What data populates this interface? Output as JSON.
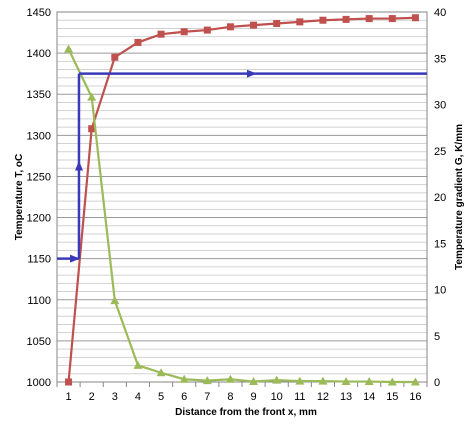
{
  "chart_data": {
    "type": "line",
    "title": "",
    "xlabel": "Distance  from the front x, mm",
    "ylabel": "Temperature T, oC",
    "y2label": "Temperature gradient   G,  K/mm",
    "x": [
      1,
      2,
      3,
      4,
      5,
      6,
      7,
      8,
      9,
      10,
      11,
      12,
      13,
      14,
      15,
      16
    ],
    "ylim": [
      1000,
      1450
    ],
    "yticks": [
      1000,
      1050,
      1100,
      1150,
      1200,
      1250,
      1300,
      1350,
      1400,
      1450
    ],
    "y2lim": [
      0,
      40
    ],
    "y2ticks": [
      0,
      5,
      10,
      15,
      20,
      25,
      30,
      35,
      40
    ],
    "grid": true,
    "legend": "none",
    "series": [
      {
        "axis": "left",
        "marker": "square",
        "color": "#c0504d",
        "values": [
          1000,
          1308,
          1395,
          1413,
          1423,
          1426,
          1428,
          1432,
          1434,
          1436,
          1438,
          1440,
          1441,
          1442,
          1442,
          1443
        ]
      },
      {
        "axis": "right",
        "marker": "triangle",
        "color": "#9bbb59",
        "values": [
          36.0,
          30.8,
          8.8,
          1.8,
          1.0,
          0.3,
          0.15,
          0.3,
          0.05,
          0.2,
          0.1,
          0.1,
          0.05,
          0.05,
          0.0,
          0.0
        ]
      }
    ],
    "annotations": [
      {
        "type": "arrow",
        "color": "#3a3ab8",
        "points": [
          [
            0.5,
            1150
          ],
          [
            1.45,
            1150
          ]
        ]
      },
      {
        "type": "arrow",
        "color": "#3a3ab8",
        "points": [
          [
            1.45,
            1150
          ],
          [
            1.45,
            1268
          ]
        ]
      },
      {
        "type": "line",
        "color": "#3a3ab8",
        "points": [
          [
            1.45,
            1268
          ],
          [
            1.45,
            1375
          ]
        ]
      },
      {
        "type": "arrow",
        "color": "#3a3ab8",
        "points": [
          [
            1.45,
            1375
          ],
          [
            9.1,
            1375
          ]
        ]
      },
      {
        "type": "line",
        "color": "#3a3ab8",
        "points": [
          [
            9.1,
            1375
          ],
          [
            16.5,
            1375
          ]
        ]
      }
    ]
  }
}
